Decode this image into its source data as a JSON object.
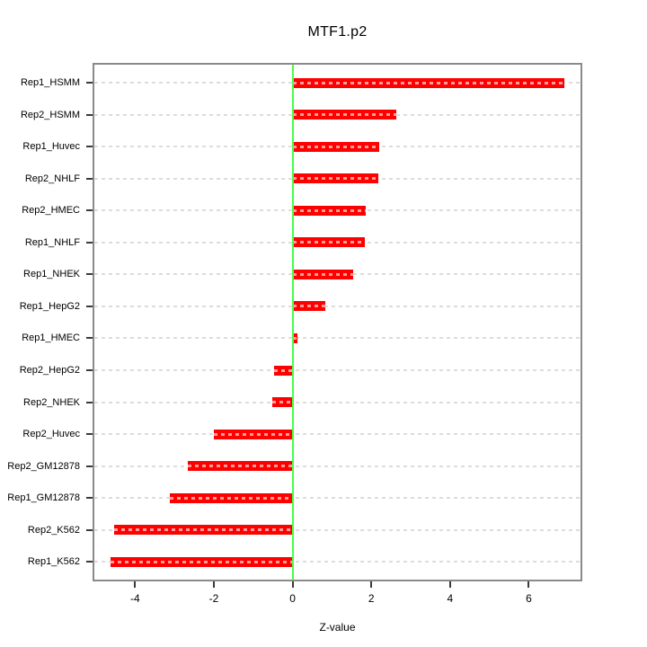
{
  "title": "MTF1.p2",
  "x_axis_label": "Z-value",
  "colors": {
    "bar": "#ff0000",
    "bar_stripe": "rgba(255,255,255,0.62)",
    "zero_line": "#46ff46",
    "gridline": "#dcdcdc",
    "box_border": "#8a8a8a",
    "tick": "#3a3a3a",
    "text": "#000000"
  },
  "chart_data": {
    "type": "bar",
    "orientation": "horizontal",
    "title": "MTF1.p2",
    "xlabel": "Z-value",
    "ylabel": "",
    "categories": [
      "Rep1_HSMM",
      "Rep2_HSMM",
      "Rep1_Huvec",
      "Rep2_NHLF",
      "Rep2_HMEC",
      "Rep1_NHLF",
      "Rep1_NHEK",
      "Rep1_HepG2",
      "Rep1_HMEC",
      "Rep2_HepG2",
      "Rep2_NHEK",
      "Rep2_Huvec",
      "Rep2_GM12878",
      "Rep1_GM12878",
      "Rep2_K562",
      "Rep1_K562"
    ],
    "values": [
      6.9,
      2.63,
      2.21,
      2.19,
      1.87,
      1.83,
      1.55,
      0.84,
      0.12,
      -0.48,
      -0.51,
      -2.0,
      -2.66,
      -3.11,
      -4.54,
      -4.62
    ],
    "x_ticks": [
      "-4",
      "-2",
      "0",
      "2",
      "4",
      "6"
    ],
    "x_tick_values": [
      -4,
      -2,
      0,
      2,
      4,
      6
    ],
    "xlim": [
      -5.08,
      7.36
    ],
    "zero_line_at": 0,
    "grid": "horizontal-dashed-per-category",
    "legend": "none",
    "sorted": "descending-top-to-bottom"
  }
}
